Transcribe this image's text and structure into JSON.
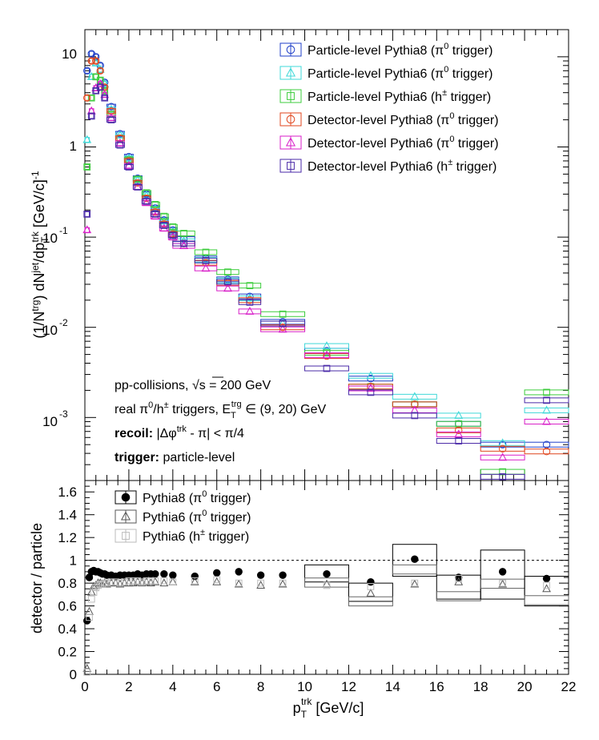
{
  "chart_data": [
    {
      "type": "scatter",
      "panel": "upper",
      "yscale": "log",
      "xlim": [
        0,
        22
      ],
      "ylim": [
        0.0002,
        20
      ],
      "ylabel_parts": {
        "a": "(1/N",
        "sup1": "trg",
        "b": ") dN",
        "sup2": "jet",
        "c": "/dp",
        "sub": "T",
        "sup3": "trk",
        "d": " [GeV/c]",
        "sup4": "-1"
      },
      "ytick_labels": [
        {
          "value": 10,
          "text": "10"
        },
        {
          "value": 1,
          "text": "1"
        },
        {
          "value": 0.1,
          "base": "10",
          "exp": "-1"
        },
        {
          "value": 0.01,
          "base": "10",
          "exp": "-2"
        },
        {
          "value": 0.001,
          "base": "10",
          "exp": "-3"
        }
      ],
      "legend": [
        {
          "pre": "Particle-level Pythia8 (π",
          "sup": "0",
          "post": " trigger)",
          "color": "#1f3fc8",
          "marker": "circle"
        },
        {
          "pre": "Particle-level Pythia6 (π",
          "sup": "0",
          "post": " trigger)",
          "color": "#3fd8d8",
          "marker": "triangle"
        },
        {
          "pre": "Particle-level Pythia6 (h",
          "sup": "±",
          "post": " trigger)",
          "color": "#3ccc3c",
          "marker": "square"
        },
        {
          "pre": "Detector-level Pythia8 (π",
          "sup": "0",
          "post": " trigger)",
          "color": "#e0461e",
          "marker": "circle"
        },
        {
          "pre": "Detector-level Pythia6 (π",
          "sup": "0",
          "post": " trigger)",
          "color": "#d81ec8",
          "marker": "triangle"
        },
        {
          "pre": "Detector-level Pythia6 (h",
          "sup": "±",
          "post": " trigger)",
          "color": "#4a2aa8",
          "marker": "square"
        }
      ],
      "annotations": {
        "line1": {
          "pre": "pp-collisions, ",
          "sqrt": "√s",
          "post": " = 200 GeV"
        },
        "line2": {
          "a": "real π",
          "sup1": "0",
          "b": "/h",
          "sup2": "±",
          "c": " triggers, E",
          "sub": "T",
          "sup3": "trg",
          "d": " ∈ (9, 20) GeV"
        },
        "line3": {
          "bold": "recoil:",
          "a": " |Δφ",
          "sup": "trk",
          "b": " - π| < π/4"
        },
        "line4": {
          "bold": "trigger:",
          "rest": " particle-level"
        }
      },
      "bins": [
        0.1,
        0.3,
        0.5,
        0.7,
        0.9,
        1.2,
        1.6,
        2.0,
        2.4,
        2.8,
        3.2,
        3.6,
        4.0,
        4.5,
        5.5,
        6.5,
        7.5,
        9.0,
        11.0,
        13.0,
        15.0,
        17.0,
        19.0,
        21.0
      ],
      "bin_halfwidths": [
        0.1,
        0.1,
        0.1,
        0.1,
        0.1,
        0.2,
        0.2,
        0.2,
        0.2,
        0.2,
        0.2,
        0.2,
        0.2,
        0.5,
        0.5,
        0.5,
        0.5,
        1.0,
        1.0,
        1.0,
        1.0,
        1.0,
        1.0,
        1.0
      ],
      "series": [
        {
          "name": "Particle-level Pythia8 (π0 trigger)",
          "values": [
            7.0,
            10.8,
            10.0,
            8.0,
            5.2,
            2.8,
            1.4,
            0.78,
            0.45,
            0.3,
            0.21,
            0.155,
            0.12,
            0.095,
            0.058,
            0.034,
            0.022,
            0.0115,
            0.0055,
            0.0027,
            0.0014,
            0.00085,
            0.0005,
            0.0005
          ]
        },
        {
          "name": "Particle-level Pythia6 (π0 trigger)",
          "values": [
            1.2,
            6.0,
            8.5,
            7.2,
            5.0,
            2.6,
            1.35,
            0.75,
            0.43,
            0.29,
            0.205,
            0.15,
            0.115,
            0.09,
            0.056,
            0.033,
            0.021,
            0.011,
            0.0062,
            0.0029,
            0.0017,
            0.00105,
            0.00052,
            0.0012
          ]
        },
        {
          "name": "Particle-level Pythia6 (h± trigger)",
          "values": [
            0.6,
            3.5,
            6.0,
            5.5,
            4.2,
            2.3,
            1.25,
            0.72,
            0.44,
            0.31,
            0.23,
            0.17,
            0.13,
            0.11,
            0.068,
            0.041,
            0.029,
            0.014,
            0.0052,
            0.0022,
            0.0014,
            0.00085,
            0.00025,
            0.0019
          ]
        },
        {
          "name": "Detector-level Pythia8 (π0 trigger)",
          "values": [
            3.5,
            9.0,
            9.0,
            7.0,
            4.6,
            2.5,
            1.25,
            0.7,
            0.4,
            0.27,
            0.19,
            0.14,
            0.108,
            0.085,
            0.052,
            0.031,
            0.02,
            0.01,
            0.0048,
            0.0022,
            0.0014,
            0.00072,
            0.00045,
            0.00042
          ]
        },
        {
          "name": "Detector-level Pythia6 (π0 trigger)",
          "values": [
            0.12,
            2.5,
            4.5,
            5.0,
            3.8,
            2.1,
            1.1,
            0.62,
            0.36,
            0.24,
            0.17,
            0.125,
            0.1,
            0.08,
            0.045,
            0.027,
            0.015,
            0.0095,
            0.0049,
            0.0021,
            0.0012,
            0.00065,
            0.00036,
            0.0009
          ]
        },
        {
          "name": "Detector-level Pythia6 (h± trigger)",
          "values": [
            0.18,
            2.2,
            4.2,
            4.6,
            3.5,
            2.0,
            1.05,
            0.6,
            0.36,
            0.25,
            0.18,
            0.135,
            0.105,
            0.085,
            0.055,
            0.032,
            0.019,
            0.011,
            0.0035,
            0.0019,
            0.00105,
            0.00055,
            0.00022,
            0.00155
          ]
        }
      ]
    },
    {
      "type": "scatter",
      "panel": "lower",
      "xlim": [
        0,
        22
      ],
      "ylim": [
        0,
        1.7
      ],
      "xlabel_parts": {
        "a": "p",
        "sub": "T",
        "sup": "trk",
        "b": " [GeV/c]"
      },
      "ylabel": "detector / particle",
      "xtick_labels": [
        "0",
        "2",
        "4",
        "6",
        "8",
        "10",
        "12",
        "14",
        "16",
        "18",
        "20",
        "22"
      ],
      "ytick_labels": [
        "0",
        "0.2",
        "0.4",
        "0.6",
        "0.8",
        "1",
        "1.2",
        "1.4",
        "1.6"
      ],
      "reference_line": 1.0,
      "legend": [
        {
          "pre": "Pythia8 (π",
          "sup": "0",
          "post": " trigger)",
          "color": "#000000",
          "marker": "filled-circle"
        },
        {
          "pre": "Pythia6 (π",
          "sup": "0",
          "post": " trigger)",
          "color": "#555555",
          "marker": "triangle"
        },
        {
          "pre": "Pythia6 (h",
          "sup": "±",
          "post": " trigger)",
          "color": "#bbbbbb",
          "marker": "square"
        }
      ],
      "x": [
        0.1,
        0.2,
        0.3,
        0.4,
        0.5,
        0.6,
        0.7,
        0.8,
        0.9,
        1.0,
        1.2,
        1.4,
        1.6,
        1.8,
        2.0,
        2.2,
        2.4,
        2.6,
        2.8,
        3.0,
        3.2,
        3.6,
        4.0,
        5.0,
        6.0,
        7.0,
        8.0,
        9.0,
        11.0,
        13.0,
        15.0,
        17.0,
        19.0,
        21.0
      ],
      "series": [
        {
          "name": "Pythia8 (π0 trigger)",
          "values": [
            0.47,
            0.85,
            0.9,
            0.91,
            0.9,
            0.9,
            0.89,
            0.88,
            0.88,
            0.87,
            0.87,
            0.86,
            0.87,
            0.87,
            0.87,
            0.87,
            0.88,
            0.87,
            0.88,
            0.88,
            0.88,
            0.88,
            0.87,
            0.86,
            0.89,
            0.9,
            0.87,
            0.87,
            0.88,
            0.81,
            1.01,
            0.85,
            0.9,
            0.84
          ]
        },
        {
          "name": "Pythia6 (π0 trigger)",
          "values": [
            0.05,
            0.55,
            0.72,
            0.77,
            0.78,
            0.8,
            0.8,
            0.79,
            0.8,
            0.79,
            0.8,
            0.8,
            0.79,
            0.8,
            0.8,
            0.8,
            0.81,
            0.8,
            0.81,
            0.8,
            0.81,
            0.8,
            0.81,
            0.81,
            0.81,
            0.79,
            0.78,
            0.79,
            0.79,
            0.71,
            0.79,
            0.81,
            0.79,
            0.75
          ]
        },
        {
          "name": "Pythia6 (h± trigger)",
          "values": [
            0.02,
            0.5,
            0.66,
            0.72,
            0.76,
            0.78,
            0.79,
            0.79,
            0.8,
            0.8,
            0.81,
            0.81,
            0.8,
            0.81,
            0.82,
            0.82,
            0.82,
            0.81,
            0.82,
            0.82,
            0.82,
            0.82,
            0.81,
            0.82,
            0.83,
            0.8,
            0.8,
            0.8,
            0.78,
            0.77,
            0.8,
            0.84,
            0.8,
            0.78
          ]
        }
      ],
      "systematic_boxes": [
        {
          "x": 11.0,
          "halfwidth": 1.0,
          "lo": 0.81,
          "hi": 0.96
        },
        {
          "x": 13.0,
          "halfwidth": 1.0,
          "lo": 0.64,
          "hi": 0.8
        },
        {
          "x": 15.0,
          "halfwidth": 1.0,
          "lo": 0.86,
          "hi": 1.14
        },
        {
          "x": 17.0,
          "halfwidth": 1.0,
          "lo": 0.66,
          "hi": 0.87
        },
        {
          "x": 19.0,
          "halfwidth": 1.0,
          "lo": 0.66,
          "hi": 1.09
        },
        {
          "x": 21.0,
          "halfwidth": 1.0,
          "lo": 0.6,
          "hi": 0.86
        }
      ]
    }
  ]
}
